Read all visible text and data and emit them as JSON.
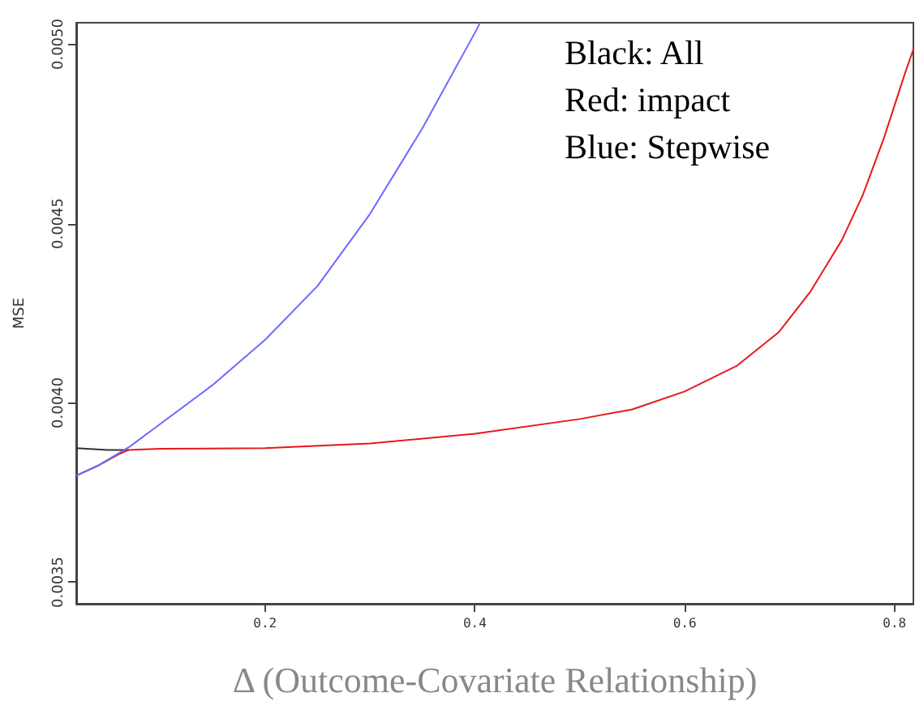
{
  "chart_data": {
    "type": "line",
    "xlabel": "Δ (Outcome-Covariate Relationship)",
    "ylabel": "MSE",
    "annotations": [
      "Black: All",
      "Red: impact",
      "Blue: Stepwise"
    ],
    "xlim": [
      0.02,
      0.818
    ],
    "xticks": [
      0.2,
      0.4,
      0.6,
      0.8
    ],
    "ylim": [
      0.00344,
      0.00506
    ],
    "yticks": [
      {
        "value": 0.0035,
        "label": "0.0035"
      },
      {
        "value": 0.004,
        "label": "0.0040"
      },
      {
        "value": 0.0045,
        "label": "0.0045"
      },
      {
        "value": 0.005,
        "label": "0.0050"
      }
    ],
    "grid": false,
    "marker": "none",
    "line_style": "solid",
    "series": [
      {
        "color": "#333333",
        "x": [
          0.02,
          0.05,
          0.07
        ],
        "values": [
          0.003874,
          0.003869,
          0.003869
        ]
      },
      {
        "color": "#e8181c",
        "x": [
          0.02,
          0.04,
          0.06,
          0.07,
          0.1,
          0.2,
          0.3,
          0.4,
          0.5,
          0.55,
          0.6,
          0.65,
          0.69,
          0.72,
          0.75,
          0.77,
          0.79,
          0.81,
          0.818
        ],
        "values": [
          0.003797,
          0.003824,
          0.003856,
          0.003869,
          0.003872,
          0.003874,
          0.003887,
          0.003914,
          0.003955,
          0.003982,
          0.004032,
          0.004104,
          0.004198,
          0.004311,
          0.004455,
          0.004581,
          0.004739,
          0.004919,
          0.004986
        ]
      },
      {
        "color": "#6a6aff",
        "x": [
          0.02,
          0.04,
          0.071,
          0.1,
          0.15,
          0.2,
          0.25,
          0.3,
          0.35,
          0.4,
          0.405
        ],
        "values": [
          0.003797,
          0.003824,
          0.003878,
          0.003941,
          0.00405,
          0.004176,
          0.004326,
          0.004527,
          0.004766,
          0.005032,
          0.00506
        ]
      }
    ]
  }
}
